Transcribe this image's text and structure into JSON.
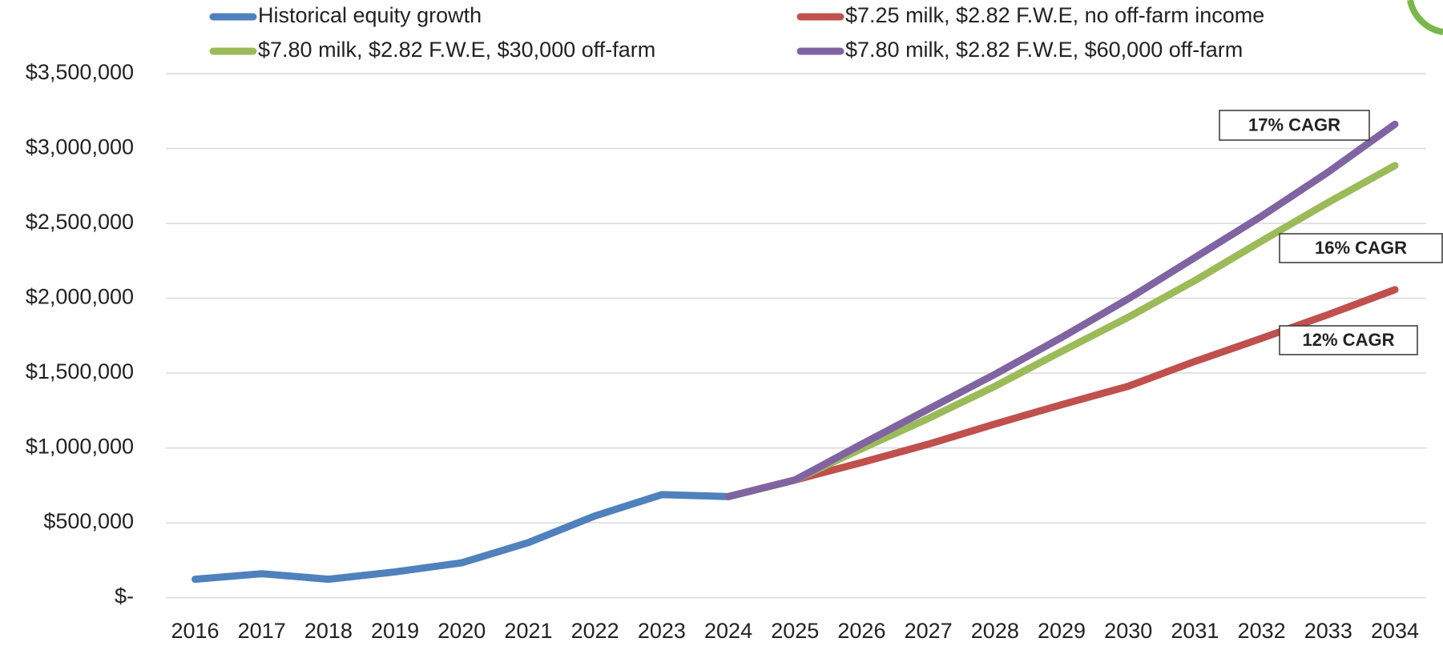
{
  "chart_data": {
    "type": "line",
    "categories": [
      "2016",
      "2017",
      "2018",
      "2019",
      "2020",
      "2021",
      "2022",
      "2023",
      "2024",
      "2025",
      "2026",
      "2027",
      "2028",
      "2029",
      "2030",
      "2031",
      "2032",
      "2033",
      "2034"
    ],
    "series": [
      {
        "name": "Historical equity growth",
        "color": "#4f81bd",
        "values": [
          123000,
          160000,
          123000,
          172000,
          233000,
          368000,
          546000,
          688000,
          675000,
          null,
          null,
          null,
          null,
          null,
          null,
          null,
          null,
          null,
          null
        ]
      },
      {
        "name": "$7.25 milk, $2.82 F.W.E, no off-farm income",
        "color": "#c0504d",
        "values": [
          null,
          null,
          null,
          null,
          null,
          null,
          null,
          null,
          675000,
          786000,
          903000,
          1025000,
          1160000,
          1289000,
          1412000,
          1578000,
          1732000,
          1891000,
          2057000
        ]
      },
      {
        "name": "$7.80 milk, $2.82 F.W.E, $30,000 off-farm",
        "color": "#9bbb59",
        "values": [
          null,
          null,
          null,
          null,
          null,
          null,
          null,
          null,
          675000,
          786000,
          995000,
          1197000,
          1412000,
          1645000,
          1873000,
          2118000,
          2382000,
          2640000,
          2886000
        ]
      },
      {
        "name": "$7.80 milk, $2.82 F.W.E, $60,000 off-farm",
        "color": "#8064a2",
        "values": [
          null,
          null,
          null,
          null,
          null,
          null,
          null,
          null,
          675000,
          786000,
          1025000,
          1259000,
          1492000,
          1738000,
          1996000,
          2272000,
          2548000,
          2843000,
          3162000
        ]
      }
    ],
    "ylim": [
      0,
      3500000
    ],
    "yticks": [
      {
        "value": 0,
        "label": "$-"
      },
      {
        "value": 500000,
        "label": "$500,000"
      },
      {
        "value": 1000000,
        "label": "$1,000,000"
      },
      {
        "value": 1500000,
        "label": "$1,500,000"
      },
      {
        "value": 2000000,
        "label": "$2,000,000"
      },
      {
        "value": 2500000,
        "label": "$2,500,000"
      },
      {
        "value": 3000000,
        "label": "$3,000,000"
      },
      {
        "value": 3500000,
        "label": "$3,500,000"
      }
    ],
    "grid": true,
    "annotations": [
      "17% CAGR",
      "16% CAGR",
      "12% CAGR"
    ]
  }
}
